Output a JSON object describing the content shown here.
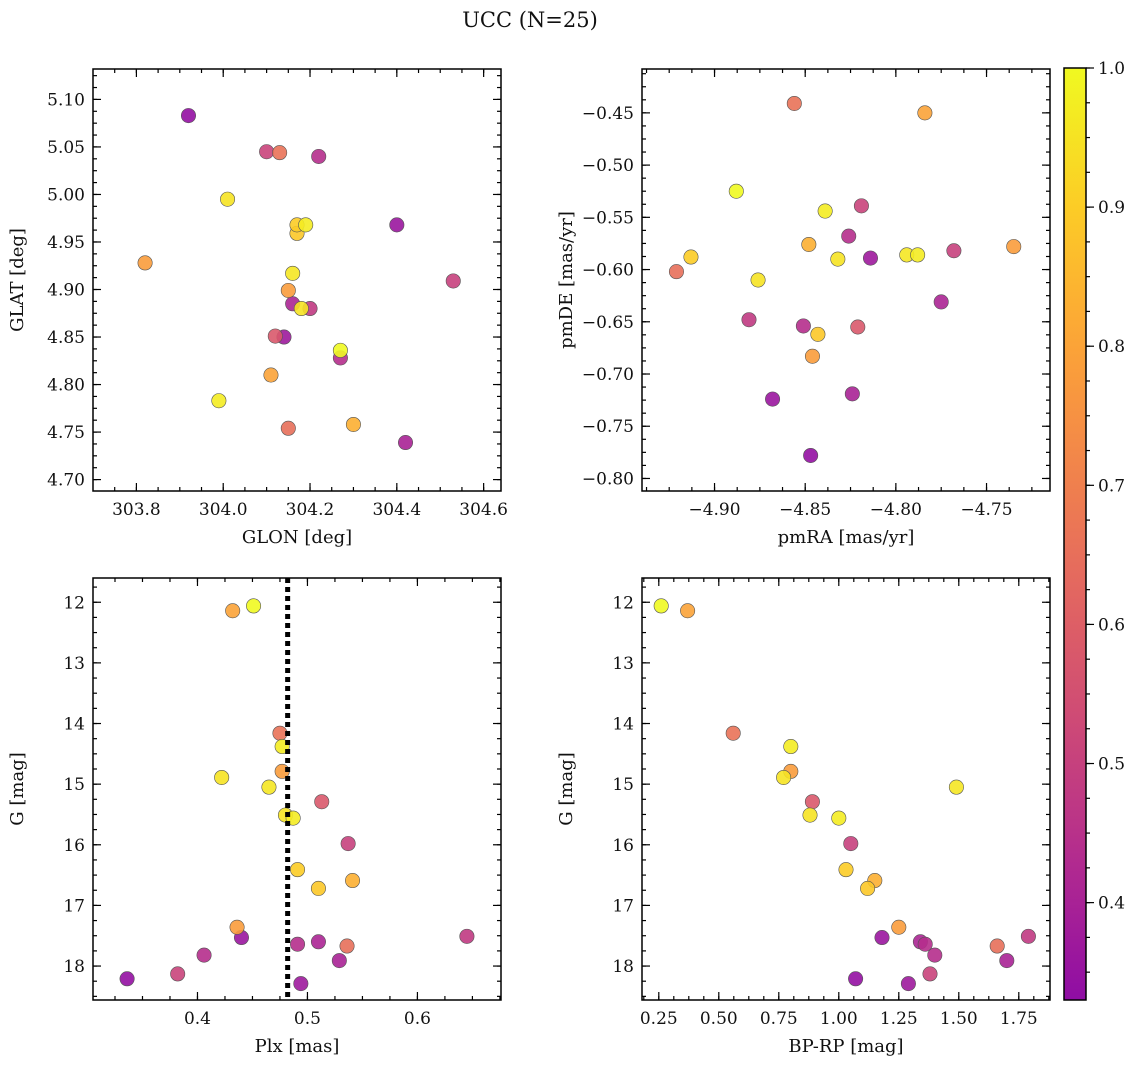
{
  "title": "UCC (N=25)",
  "colorbar": {
    "min": 0.33,
    "max": 1.0,
    "ticks": [
      0.4,
      0.5,
      0.6,
      0.7,
      0.8,
      0.9,
      1.0
    ],
    "tick_labels": [
      "0.4",
      "0.5",
      "0.6",
      "0.7",
      "0.8",
      "0.9",
      "1.0"
    ],
    "colormap": "plasma"
  },
  "members": [
    {
      "glon": 304.27,
      "glat": 4.836,
      "pmra": -4.888,
      "pmde": -0.525,
      "plx": 0.451,
      "g": 12.06,
      "bprp": 0.26,
      "p": 1.0
    },
    {
      "glon": 304.11,
      "glat": 4.81,
      "pmra": -4.784,
      "pmde": -0.45,
      "plx": 0.432,
      "g": 12.14,
      "bprp": 0.37,
      "p": 0.8
    },
    {
      "glon": 304.13,
      "glat": 5.044,
      "pmra": -4.856,
      "pmde": -0.441,
      "plx": 0.475,
      "g": 14.16,
      "bprp": 0.56,
      "p": 0.66
    },
    {
      "glon": 303.99,
      "glat": 4.783,
      "pmra": -4.839,
      "pmde": -0.544,
      "plx": 0.477,
      "g": 14.38,
      "bprp": 0.8,
      "p": 0.97
    },
    {
      "glon": 304.15,
      "glat": 4.899,
      "pmra": -4.735,
      "pmde": -0.578,
      "plx": 0.477,
      "g": 14.79,
      "bprp": 0.8,
      "p": 0.78
    },
    {
      "glon": 304.01,
      "glat": 4.995,
      "pmra": -4.876,
      "pmde": -0.61,
      "plx": 0.422,
      "g": 14.89,
      "bprp": 0.77,
      "p": 0.95
    },
    {
      "glon": 304.16,
      "glat": 4.917,
      "pmra": -4.794,
      "pmde": -0.586,
      "plx": 0.465,
      "g": 15.05,
      "bprp": 1.49,
      "p": 0.96
    },
    {
      "glon": 304.12,
      "glat": 4.851,
      "pmra": -4.821,
      "pmde": -0.655,
      "plx": 0.513,
      "g": 15.29,
      "bprp": 0.89,
      "p": 0.58
    },
    {
      "glon": 304.18,
      "glat": 4.88,
      "pmra": -4.832,
      "pmde": -0.59,
      "plx": 0.48,
      "g": 15.51,
      "bprp": 0.88,
      "p": 0.95
    },
    {
      "glon": 304.19,
      "glat": 4.968,
      "pmra": -4.788,
      "pmde": -0.586,
      "plx": 0.487,
      "g": 15.56,
      "bprp": 1.0,
      "p": 0.97
    },
    {
      "glon": 304.53,
      "glat": 4.909,
      "pmra": -4.768,
      "pmde": -0.582,
      "plx": 0.537,
      "g": 15.98,
      "bprp": 1.05,
      "p": 0.5
    },
    {
      "glon": 304.17,
      "glat": 4.968,
      "pmra": -4.913,
      "pmde": -0.588,
      "plx": 0.491,
      "g": 16.41,
      "bprp": 1.03,
      "p": 0.9
    },
    {
      "glon": 304.3,
      "glat": 4.758,
      "pmra": -4.848,
      "pmde": -0.576,
      "plx": 0.541,
      "g": 16.59,
      "bprp": 1.15,
      "p": 0.83
    },
    {
      "glon": 304.17,
      "glat": 4.959,
      "pmra": -4.843,
      "pmde": -0.662,
      "plx": 0.51,
      "g": 16.72,
      "bprp": 1.12,
      "p": 0.89
    },
    {
      "glon": 303.82,
      "glat": 4.928,
      "pmra": -4.846,
      "pmde": -0.683,
      "plx": 0.436,
      "g": 17.36,
      "bprp": 1.25,
      "p": 0.78
    },
    {
      "glon": 304.4,
      "glat": 4.968,
      "pmra": -4.868,
      "pmde": -0.724,
      "plx": 0.44,
      "g": 17.53,
      "bprp": 1.18,
      "p": 0.36
    },
    {
      "glon": 304.15,
      "glat": 4.754,
      "pmra": -4.921,
      "pmde": -0.602,
      "plx": 0.536,
      "g": 17.67,
      "bprp": 1.66,
      "p": 0.65
    },
    {
      "glon": 304.27,
      "glat": 4.828,
      "pmra": -4.851,
      "pmde": -0.654,
      "plx": 0.491,
      "g": 17.64,
      "bprp": 1.36,
      "p": 0.44
    },
    {
      "glon": 304.16,
      "glat": 4.885,
      "pmra": -4.775,
      "pmde": -0.631,
      "plx": 0.51,
      "g": 17.6,
      "bprp": 1.34,
      "p": 0.41
    },
    {
      "glon": 304.2,
      "glat": 4.88,
      "pmra": -4.881,
      "pmde": -0.648,
      "plx": 0.645,
      "g": 17.51,
      "bprp": 1.79,
      "p": 0.48
    },
    {
      "glon": 304.22,
      "glat": 5.04,
      "pmra": -4.826,
      "pmde": -0.568,
      "plx": 0.406,
      "g": 17.82,
      "bprp": 1.4,
      "p": 0.44
    },
    {
      "glon": 304.1,
      "glat": 5.045,
      "pmra": -4.819,
      "pmde": -0.539,
      "plx": 0.382,
      "g": 18.13,
      "bprp": 1.38,
      "p": 0.51
    },
    {
      "glon": 304.42,
      "glat": 4.739,
      "pmra": -4.824,
      "pmde": -0.719,
      "plx": 0.529,
      "g": 17.91,
      "bprp": 1.7,
      "p": 0.4
    },
    {
      "glon": 303.92,
      "glat": 5.083,
      "pmra": -4.847,
      "pmde": -0.778,
      "plx": 0.336,
      "g": 18.21,
      "bprp": 1.07,
      "p": 0.34
    },
    {
      "glon": 304.14,
      "glat": 4.85,
      "pmra": -4.814,
      "pmde": -0.589,
      "plx": 0.494,
      "g": 18.29,
      "bprp": 1.29,
      "p": 0.37
    }
  ],
  "panels": [
    {
      "id": "glon-glat",
      "xkey": "glon",
      "ykey": "glat",
      "xlabel": "GLON [deg]",
      "ylabel": "GLAT [deg]",
      "xlim": [
        303.7,
        304.64
      ],
      "ylim": [
        4.688,
        5.132
      ],
      "invert_y": false,
      "xticks": [
        303.8,
        304.0,
        304.2,
        304.4,
        304.6
      ],
      "xtick_labels": [
        "303.8",
        "304.0",
        "304.2",
        "304.4",
        "304.6"
      ],
      "yticks": [
        4.7,
        4.75,
        4.8,
        4.85,
        4.9,
        4.95,
        5.0,
        5.05,
        5.1
      ],
      "ytick_labels": [
        "4.70",
        "4.75",
        "4.80",
        "4.85",
        "4.90",
        "4.95",
        "5.00",
        "5.05",
        "5.10"
      ]
    },
    {
      "id": "pm",
      "xkey": "pmra",
      "ykey": "pmde",
      "xlabel": "pmRA [mas/yr]",
      "ylabel": "pmDE [mas/yr]",
      "xlim": [
        -4.94,
        -4.715
      ],
      "ylim": [
        -0.812,
        -0.408
      ],
      "invert_y": false,
      "xticks": [
        -4.9,
        -4.85,
        -4.8,
        -4.75
      ],
      "xtick_labels": [
        "−4.90",
        "−4.85",
        "−4.80",
        "−4.75"
      ],
      "yticks": [
        -0.8,
        -0.75,
        -0.7,
        -0.65,
        -0.6,
        -0.55,
        -0.5,
        -0.45
      ],
      "ytick_labels": [
        "−0.80",
        "−0.75",
        "−0.70",
        "−0.65",
        "−0.60",
        "−0.55",
        "−0.50",
        "−0.45"
      ]
    },
    {
      "id": "plx-g",
      "xkey": "plx",
      "ykey": "g",
      "xlabel": "Plx [mas]",
      "ylabel": "G [mag]",
      "xlim": [
        0.305,
        0.676
      ],
      "ylim": [
        11.6,
        18.56
      ],
      "invert_y": true,
      "vline": 0.482,
      "xticks": [
        0.4,
        0.5,
        0.6
      ],
      "xtick_labels": [
        "0.4",
        "0.5",
        "0.6"
      ],
      "yticks": [
        12,
        13,
        14,
        15,
        16,
        17,
        18
      ],
      "ytick_labels": [
        "12",
        "13",
        "14",
        "15",
        "16",
        "17",
        "18"
      ]
    },
    {
      "id": "cmd",
      "xkey": "bprp",
      "ykey": "g",
      "xlabel": "BP-RP [mag]",
      "ylabel": "G [mag]",
      "xlim": [
        0.18,
        1.88
      ],
      "ylim": [
        11.6,
        18.56
      ],
      "invert_y": true,
      "xticks": [
        0.25,
        0.5,
        0.75,
        1.0,
        1.25,
        1.5,
        1.75
      ],
      "xtick_labels": [
        "0.25",
        "0.50",
        "0.75",
        "1.00",
        "1.25",
        "1.50",
        "1.75"
      ],
      "yticks": [
        12,
        13,
        14,
        15,
        16,
        17,
        18
      ],
      "ytick_labels": [
        "12",
        "13",
        "14",
        "15",
        "16",
        "17",
        "18"
      ]
    }
  ],
  "chart_data": [
    {
      "type": "scatter",
      "panel": "glon-glat",
      "xlabel": "GLON [deg]",
      "ylabel": "GLAT [deg]",
      "xlim": [
        303.7,
        304.64
      ],
      "ylim": [
        4.688,
        5.132
      ],
      "color_by": "membership probability",
      "data_ref": "members"
    },
    {
      "type": "scatter",
      "panel": "pm",
      "xlabel": "pmRA [mas/yr]",
      "ylabel": "pmDE [mas/yr]",
      "xlim": [
        -4.94,
        -4.715
      ],
      "ylim": [
        -0.812,
        -0.408
      ],
      "data_ref": "members"
    },
    {
      "type": "scatter",
      "panel": "plx-g",
      "xlabel": "Plx [mas]",
      "ylabel": "G [mag]",
      "xlim": [
        0.305,
        0.676
      ],
      "ylim": [
        18.56,
        11.6
      ],
      "vertical_line": 0.482,
      "data_ref": "members"
    },
    {
      "type": "scatter",
      "panel": "cmd",
      "xlabel": "BP-RP [mag]",
      "ylabel": "G [mag]",
      "xlim": [
        0.18,
        1.88
      ],
      "ylim": [
        18.56,
        11.6
      ],
      "data_ref": "members"
    }
  ]
}
